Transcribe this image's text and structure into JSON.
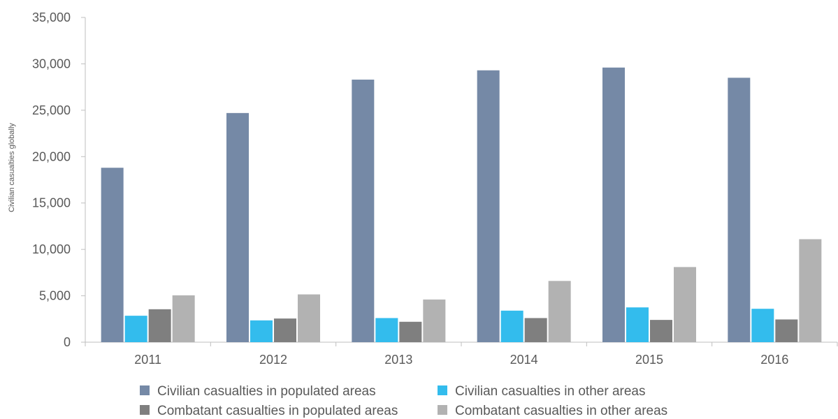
{
  "chart_data": {
    "type": "bar",
    "title": "",
    "xlabel": "",
    "ylabel": "Civilian casualties globally",
    "categories": [
      "2011",
      "2012",
      "2013",
      "2014",
      "2015",
      "2016"
    ],
    "series": [
      {
        "name": "Civilian casualties in populated areas",
        "color": "#7589a6",
        "values": [
          18800,
          24700,
          28300,
          29300,
          29600,
          28500
        ]
      },
      {
        "name": "Civilian casualties in other areas",
        "color": "#33bced",
        "values": [
          2850,
          2350,
          2600,
          3400,
          3750,
          3600
        ]
      },
      {
        "name": "Combatant casualties in populated areas",
        "color": "#7f7f7f",
        "values": [
          3550,
          2550,
          2200,
          2600,
          2400,
          2450
        ]
      },
      {
        "name": "Combatant casualties in other areas",
        "color": "#b2b2b2",
        "values": [
          5050,
          5150,
          4600,
          6600,
          8100,
          11100
        ]
      }
    ],
    "ylim": [
      0,
      35000
    ],
    "yticks": [
      "0",
      "5,000",
      "10,000",
      "15,000",
      "20,000",
      "25,000",
      "30,000",
      "35,000"
    ],
    "ytick_values": [
      0,
      5000,
      10000,
      15000,
      20000,
      25000,
      30000,
      35000
    ],
    "grid": false,
    "legend_position": "bottom"
  }
}
